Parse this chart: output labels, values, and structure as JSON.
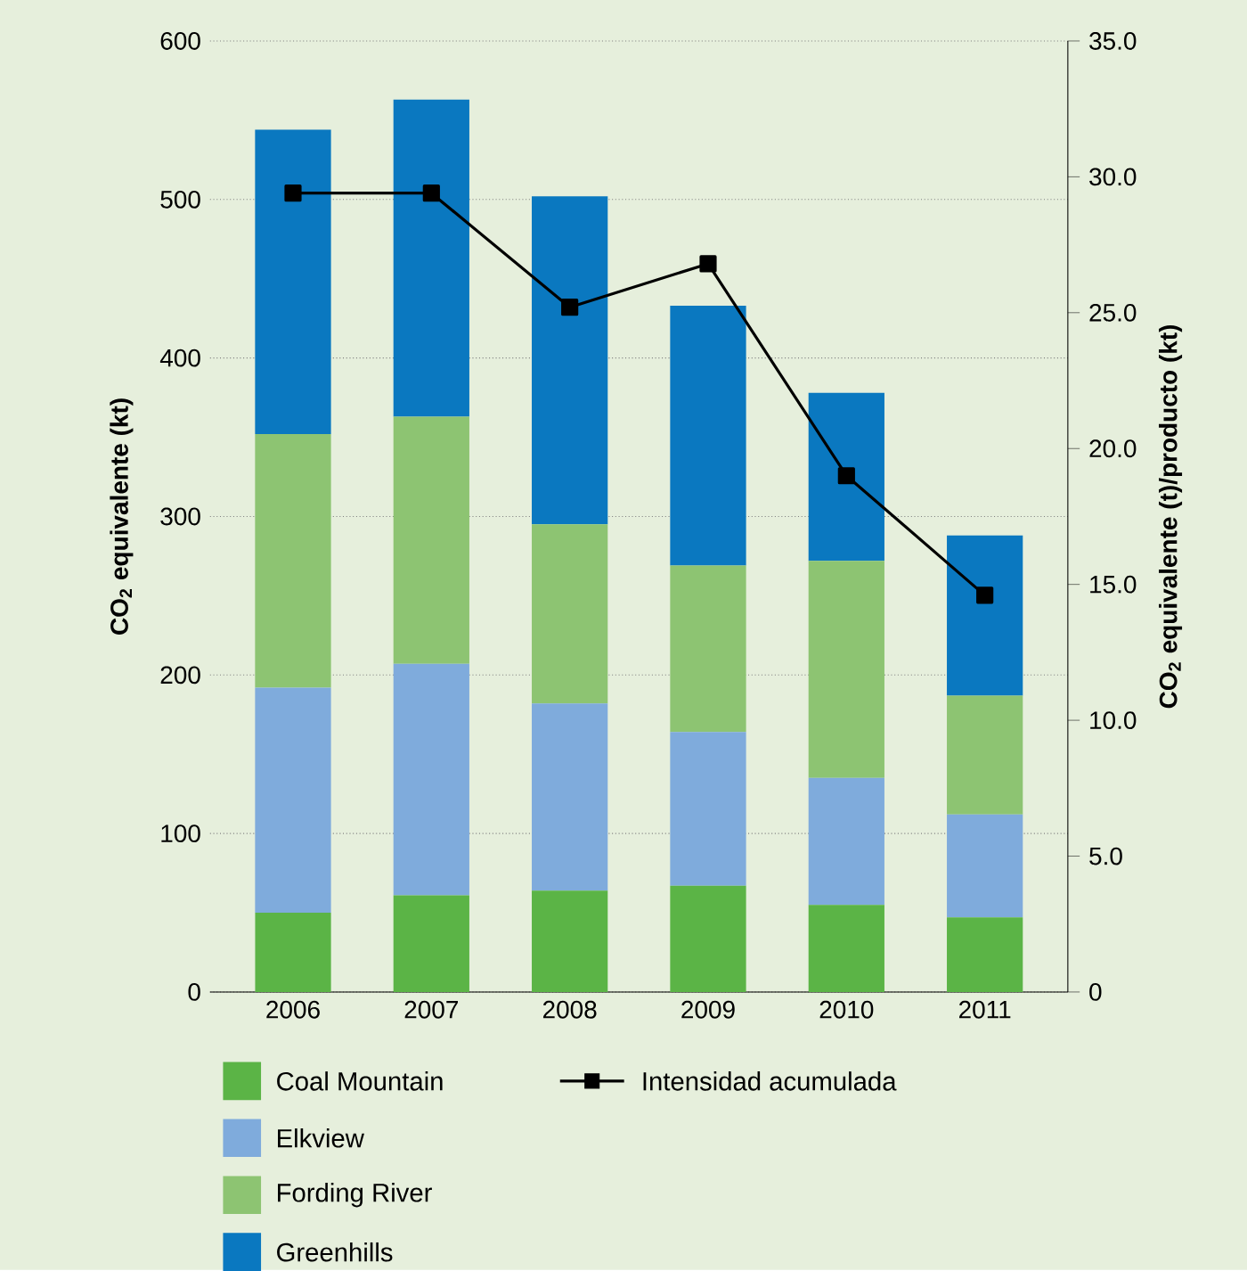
{
  "chart_data": {
    "type": "bar",
    "stacked": true,
    "categories": [
      "2006",
      "2007",
      "2008",
      "2009",
      "2010",
      "2011"
    ],
    "series": [
      {
        "name": "Coal Mountain",
        "color": "#5bb446",
        "values": [
          50,
          61,
          64,
          67,
          55,
          47
        ]
      },
      {
        "name": "Elkview",
        "color": "#7fabdc",
        "values": [
          142,
          146,
          118,
          97,
          80,
          65
        ]
      },
      {
        "name": "Fording River",
        "color": "#8dc472",
        "values": [
          160,
          156,
          113,
          105,
          137,
          75
        ]
      },
      {
        "name": "Greenhills",
        "color": "#0a78c0",
        "values": [
          192,
          200,
          207,
          164,
          106,
          101
        ]
      },
      {
        "name": "Intensidad acumulada",
        "type": "line",
        "axis": "y2",
        "marker": "square",
        "line_style": "solid",
        "color": "#000000",
        "values": [
          29.4,
          29.4,
          25.2,
          26.8,
          19.0,
          14.6
        ]
      }
    ],
    "ylabel": "CO$_{2}$ equivalente (kt)",
    "y2label": "CO$_{2}$ equivalente (t)/producto (kt)",
    "ylim": [
      0,
      600
    ],
    "yticks": [
      0,
      100,
      200,
      300,
      400,
      500,
      600
    ],
    "y2lim": [
      0,
      35
    ],
    "y2ticks": [
      0,
      {
        "value": 5,
        "label": "5.0"
      },
      {
        "value": 10,
        "label": "10.0"
      },
      {
        "value": 15,
        "label": "15.0"
      },
      {
        "value": 20,
        "label": "20.0"
      },
      {
        "value": 25,
        "label": "25.0"
      },
      {
        "value": 30,
        "label": "30.0"
      },
      {
        "value": 35,
        "label": "35.0"
      }
    ],
    "grid": "y",
    "legend": "bottom"
  }
}
